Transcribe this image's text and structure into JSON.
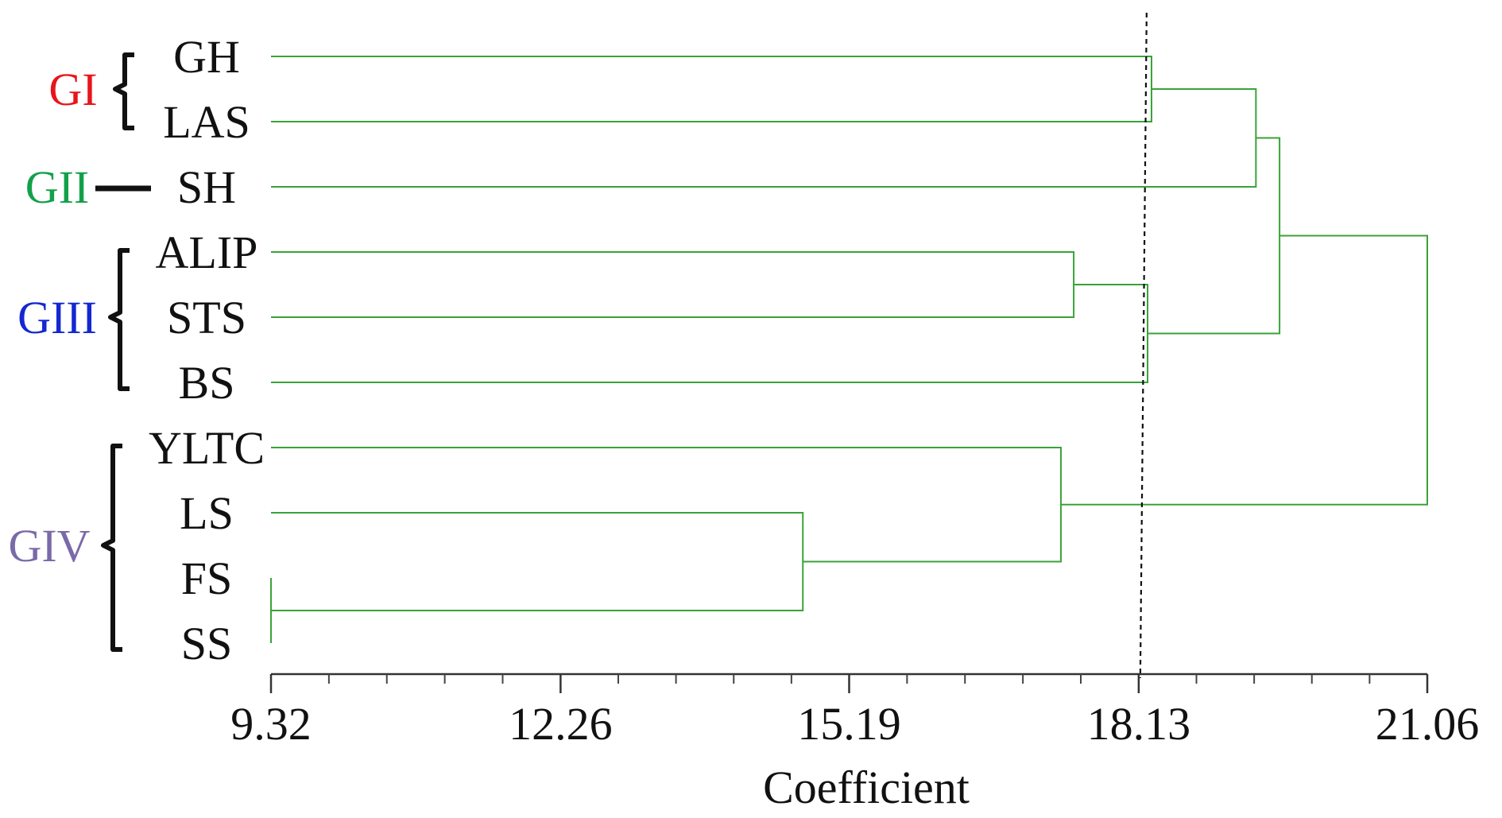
{
  "chart_data": {
    "type": "dendrogram",
    "xlabel": "Coefficient",
    "xlim": [
      9.32,
      21.06
    ],
    "x_ticks": [
      "9.32",
      "12.26",
      "15.19",
      "18.13",
      "21.06"
    ],
    "x_tick_values": [
      9.32,
      12.26,
      15.19,
      18.13,
      21.06
    ],
    "cut_line": 18.17,
    "leaves": [
      "GH",
      "LAS",
      "SH",
      "ALIP",
      "STS",
      "BS",
      "YLTC",
      "LS",
      "FS",
      "SS"
    ],
    "merges": [
      {
        "id": "m1",
        "left": "FS",
        "right": "SS",
        "height": 9.32
      },
      {
        "id": "m2",
        "left": "LS",
        "right": "m1",
        "height": 14.72
      },
      {
        "id": "m3",
        "left": "YLTC",
        "right": "m2",
        "height": 17.34
      },
      {
        "id": "m4",
        "left": "ALIP",
        "right": "STS",
        "height": 17.47
      },
      {
        "id": "m5",
        "left": "m4",
        "right": "BS",
        "height": 18.22
      },
      {
        "id": "m6",
        "left": "GH",
        "right": "LAS",
        "height": 18.26
      },
      {
        "id": "m7",
        "left": "m6",
        "right": "SH",
        "height": 19.32
      },
      {
        "id": "m8",
        "left": "m7",
        "right": "m5",
        "height": 19.56
      },
      {
        "id": "m9",
        "left": "m8",
        "right": "m3",
        "height": 21.06
      }
    ],
    "groups": [
      {
        "label": "GI",
        "color": "#e8141c",
        "members": [
          "GH",
          "LAS"
        ]
      },
      {
        "label": "GII",
        "color": "#13a04a",
        "members": [
          "SH"
        ]
      },
      {
        "label": "GIII",
        "color": "#1428d2",
        "members": [
          "ALIP",
          "STS",
          "BS"
        ]
      },
      {
        "label": "GIV",
        "color": "#7a6aa8",
        "members": [
          "YLTC",
          "LS",
          "FS",
          "SS"
        ]
      }
    ],
    "line_color": "#3aa23a"
  }
}
